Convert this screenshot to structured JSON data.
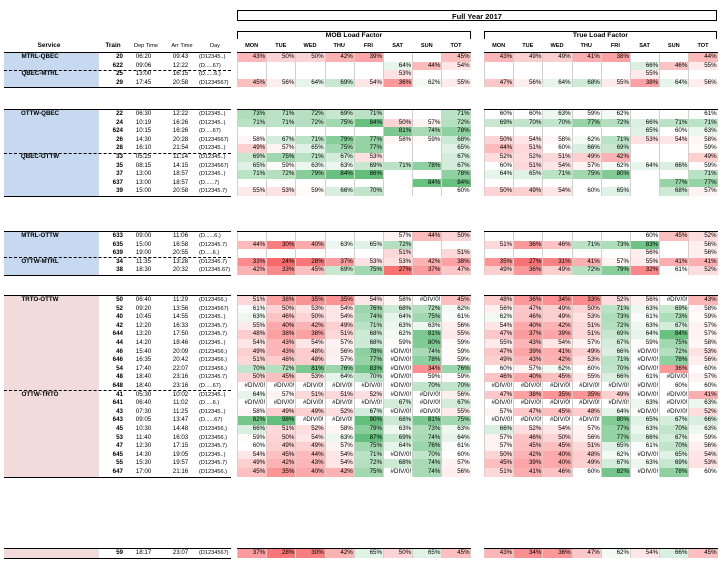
{
  "title": "Full Year 2017",
  "mob_header": "MOB Load Factor",
  "true_header": "True Load Factor",
  "columns": {
    "service": "Service",
    "train": "Train",
    "dep": "Dep Time",
    "arr": "Arr Time",
    "day": "Day",
    "days": [
      "MON",
      "TUE",
      "WED",
      "THU",
      "FRI",
      "SAT",
      "SUN",
      "TOT"
    ]
  },
  "rows": [
    {
      "svc": "MTRL-QBEC",
      "train": "20",
      "dep": "06:20",
      "arr": "09:43",
      "day": "(D12345..)",
      "mob": [
        "43%",
        "50%",
        "50%",
        "42%",
        "39%",
        "",
        "",
        "45%"
      ],
      "tru": [
        "43%",
        "49%",
        "49%",
        "41%",
        "38%",
        "",
        "",
        "44%"
      ]
    },
    {
      "svc": "",
      "train": "622",
      "dep": "09:06",
      "arr": "12:22",
      "day": "(D.....67)",
      "mob": [
        "",
        "",
        "",
        "",
        "",
        "64%",
        "44%",
        "54%"
      ],
      "tru": [
        "",
        "",
        "",
        "",
        "",
        "66%",
        "46%",
        "55%"
      ]
    },
    {
      "svc": "QBEC-MTRL",
      "train": "25",
      "dep": "13:00",
      "arr": "16:15",
      "day": "(D......6.)",
      "mob": [
        "",
        "",
        "",
        "",
        "",
        "53%",
        "",
        ""
      ],
      "tru": [
        "",
        "",
        "",
        "",
        "",
        "55%",
        "",
        ""
      ]
    },
    {
      "svc": "",
      "train": "29",
      "dep": "17:45",
      "arr": "20:58",
      "day": "(D1234567)",
      "mob": [
        "45%",
        "56%",
        "64%",
        "69%",
        "54%",
        "36%",
        "62%",
        "55%"
      ],
      "tru": [
        "47%",
        "56%",
        "64%",
        "68%",
        "55%",
        "38%",
        "64%",
        "56%"
      ]
    },
    {
      "svc": "OTTW-QBEC",
      "train": "22",
      "dep": "06:30",
      "arr": "12:22",
      "day": "(D12345..)",
      "mob": [
        "73%",
        "71%",
        "72%",
        "69%",
        "71%",
        "",
        "",
        "71%"
      ],
      "tru": [
        "60%",
        "60%",
        "63%",
        "59%",
        "62%",
        "",
        "",
        "61%"
      ]
    },
    {
      "svc": "",
      "train": "24",
      "dep": "10:19",
      "arr": "16:26",
      "day": "(D12345..)",
      "mob": [
        "71%",
        "71%",
        "72%",
        "75%",
        "84%",
        "50%",
        "57%",
        "72%"
      ],
      "tru": [
        "69%",
        "70%",
        "70%",
        "77%",
        "72%",
        "66%",
        "71%",
        "71%"
      ]
    },
    {
      "svc": "",
      "train": "624",
      "dep": "10:15",
      "arr": "16:26",
      "day": "(D.....67)",
      "mob": [
        "",
        "",
        "",
        "",
        "",
        "81%",
        "74%",
        "78%"
      ],
      "tru": [
        "",
        "",
        "",
        "",
        "",
        "65%",
        "60%",
        "63%"
      ]
    },
    {
      "svc": "",
      "train": "26",
      "dep": "14:30",
      "arr": "20:28",
      "day": "(D1234567)",
      "mob": [
        "58%",
        "67%",
        "71%",
        "79%",
        "77%",
        "58%",
        "59%",
        "68%"
      ],
      "tru": [
        "50%",
        "54%",
        "58%",
        "62%",
        "71%",
        "53%",
        "54%",
        "58%"
      ]
    },
    {
      "svc": "",
      "train": "28",
      "dep": "16:10",
      "arr": "21:54",
      "day": "(D12345..)",
      "mob": [
        "49%",
        "57%",
        "65%",
        "75%",
        "77%",
        "",
        "",
        "65%"
      ],
      "tru": [
        "44%",
        "51%",
        "60%",
        "66%",
        "69%",
        "",
        "",
        "59%"
      ]
    },
    {
      "svc": "QBEC-OTTW",
      "train": "33",
      "dep": "05:25",
      "arr": "11:14",
      "day": "(D12345..)",
      "mob": [
        "69%",
        "75%",
        "71%",
        "67%",
        "53%",
        "",
        "",
        "67%"
      ],
      "tru": [
        "52%",
        "52%",
        "51%",
        "49%",
        "42%",
        "",
        "",
        "49%"
      ]
    },
    {
      "svc": "",
      "train": "35",
      "dep": "08:15",
      "arr": "14:15",
      "day": "(D1234567)",
      "mob": [
        "65%",
        "59%",
        "63%",
        "63%",
        "69%",
        "71%",
        "78%",
        "67%"
      ],
      "tru": [
        "60%",
        "51%",
        "54%",
        "57%",
        "62%",
        "64%",
        "66%",
        "59%"
      ]
    },
    {
      "svc": "",
      "train": "37",
      "dep": "13:00",
      "arr": "18:57",
      "day": "(D12345..)",
      "mob": [
        "71%",
        "72%",
        "79%",
        "84%",
        "86%",
        "",
        "",
        "78%"
      ],
      "tru": [
        "64%",
        "65%",
        "71%",
        "75%",
        "80%",
        "",
        "",
        "71%"
      ]
    },
    {
      "svc": "",
      "train": "637",
      "dep": "13:00",
      "arr": "18:57",
      "day": "(D......7)",
      "mob": [
        "",
        "",
        "",
        "",
        "",
        "",
        "84%",
        "84%"
      ],
      "tru": [
        "",
        "",
        "",
        "",
        "",
        "",
        "77%",
        "77%"
      ]
    },
    {
      "svc": "",
      "train": "39",
      "dep": "15:00",
      "arr": "20:58",
      "day": "(D12345.7)",
      "mob": [
        "55%",
        "53%",
        "59%",
        "66%",
        "70%",
        "",
        "",
        "60%"
      ],
      "tru": [
        "50%",
        "49%",
        "54%",
        "60%",
        "65%",
        "",
        "68%",
        "57%"
      ]
    },
    {
      "svc": "MTRL-OTTW",
      "train": "633",
      "dep": "09:00",
      "arr": "11:06",
      "day": "(D......6.)",
      "mob": [
        "",
        "",
        "",
        "",
        "",
        "57%",
        "44%",
        "50%"
      ],
      "tru": [
        "",
        "",
        "",
        "",
        "",
        "60%",
        "45%",
        "52%"
      ]
    },
    {
      "svc": "",
      "train": "635",
      "dep": "15:00",
      "arr": "16:58",
      "day": "(D12345.7)",
      "mob": [
        "44%",
        "30%",
        "40%",
        "63%",
        "65%",
        "72%",
        "",
        ""
      ],
      "tru": [
        "51%",
        "36%",
        "46%",
        "71%",
        "73%",
        "83%",
        "",
        "56%"
      ]
    },
    {
      "svc": "",
      "train": "639",
      "dep": "19:00",
      "arr": "20:55",
      "day": "(D.....6.)",
      "mob": [
        "",
        "",
        "",
        "",
        "",
        "51%",
        "",
        "51%"
      ],
      "tru": [
        "",
        "",
        "",
        "",
        "",
        "56%",
        "",
        "56%"
      ]
    },
    {
      "svc": "OTTW-MTRL",
      "train": "34",
      "dep": "11:35",
      "arr": "13:28",
      "day": "(D12345.7)",
      "mob": [
        "33%",
        "24%",
        "28%",
        "37%",
        "53%",
        "53%",
        "42%",
        "38%"
      ],
      "tru": [
        "35%",
        "27%",
        "31%",
        "41%",
        "57%",
        "55%",
        "41%",
        "41%"
      ]
    },
    {
      "svc": "",
      "train": "38",
      "dep": "18:30",
      "arr": "20:32",
      "day": "(D12345.67)",
      "mob": [
        "42%",
        "33%",
        "45%",
        "69%",
        "75%",
        "27%",
        "37%",
        "47%"
      ],
      "tru": [
        "49%",
        "36%",
        "49%",
        "72%",
        "79%",
        "32%",
        "61%",
        "52%"
      ]
    },
    {
      "svc": "TRTO-OTTW",
      "train": "50",
      "dep": "06:40",
      "arr": "11:29",
      "day": "(D123456.)",
      "mob": [
        "51%",
        "38%",
        "35%",
        "35%",
        "54%",
        "58%",
        "#DIV/0!",
        "45%"
      ],
      "tru": [
        "48%",
        "36%",
        "34%",
        "33%",
        "52%",
        "56%",
        "#DIV/0!",
        "43%"
      ]
    },
    {
      "svc": "",
      "train": "52",
      "dep": "09:20",
      "arr": "13:56",
      "day": "(D1234567)",
      "mob": [
        "61%",
        "50%",
        "53%",
        "54%",
        "76%",
        "68%",
        "72%",
        "62%"
      ],
      "tru": [
        "56%",
        "47%",
        "49%",
        "50%",
        "71%",
        "63%",
        "69%",
        "58%"
      ]
    },
    {
      "svc": "",
      "train": "40",
      "dep": "10:45",
      "arr": "14:55",
      "day": "(D12345..)",
      "mob": [
        "63%",
        "46%",
        "50%",
        "54%",
        "74%",
        "64%",
        "75%",
        "61%"
      ],
      "tru": [
        "62%",
        "46%",
        "49%",
        "53%",
        "73%",
        "61%",
        "73%",
        "59%"
      ]
    },
    {
      "svc": "",
      "train": "42",
      "dep": "12:20",
      "arr": "16:33",
      "day": "(D12345.7)",
      "mob": [
        "55%",
        "40%",
        "42%",
        "49%",
        "71%",
        "63%",
        "63%",
        "56%"
      ],
      "tru": [
        "54%",
        "40%",
        "42%",
        "51%",
        "72%",
        "63%",
        "67%",
        "57%"
      ]
    },
    {
      "svc": "",
      "train": "644",
      "dep": "13:20",
      "arr": "17:50",
      "day": "(D12345.7)",
      "mob": [
        "48%",
        "38%",
        "38%",
        "51%",
        "68%",
        "62%",
        "81%",
        "55%"
      ],
      "tru": [
        "47%",
        "37%",
        "39%",
        "51%",
        "69%",
        "64%",
        "84%",
        "57%"
      ]
    },
    {
      "svc": "",
      "train": "44",
      "dep": "14:20",
      "arr": "18:46",
      "day": "(D12345..)",
      "mob": [
        "54%",
        "43%",
        "54%",
        "57%",
        "68%",
        "59%",
        "80%",
        "59%"
      ],
      "tru": [
        "55%",
        "43%",
        "54%",
        "57%",
        "67%",
        "59%",
        "75%",
        "58%"
      ]
    },
    {
      "svc": "",
      "train": "46",
      "dep": "15:40",
      "arr": "20:09",
      "day": "(D123456.)",
      "mob": [
        "49%",
        "43%",
        "48%",
        "56%",
        "78%",
        "#DIV/0!",
        "74%",
        "59%"
      ],
      "tru": [
        "47%",
        "39%",
        "41%",
        "49%",
        "66%",
        "#DIV/0!",
        "72%",
        "53%"
      ]
    },
    {
      "svc": "",
      "train": "646",
      "dep": "16:35",
      "arr": "20:42",
      "day": "(D123456.)",
      "mob": [
        "51%",
        "48%",
        "48%",
        "57%",
        "77%",
        "#DIV/0!",
        "78%",
        "59%"
      ],
      "tru": [
        "49%",
        "43%",
        "42%",
        "53%",
        "71%",
        "#DIV/0!",
        "78%",
        "56%"
      ]
    },
    {
      "svc": "",
      "train": "54",
      "dep": "17:40",
      "arr": "22:07",
      "day": "(D123456.)",
      "mob": [
        "70%",
        "72%",
        "81%",
        "76%",
        "83%",
        "#DIV/0!",
        "34%",
        "76%"
      ],
      "tru": [
        "60%",
        "57%",
        "62%",
        "60%",
        "70%",
        "#DIV/0!",
        "36%",
        "60%"
      ]
    },
    {
      "svc": "",
      "train": "48",
      "dep": "18:40",
      "arr": "23:16",
      "day": "(D12345.7)",
      "mob": [
        "50%",
        "45%",
        "53%",
        "64%",
        "70%",
        "#DIV/0!",
        "59%",
        "59%"
      ],
      "tru": [
        "46%",
        "40%",
        "45%",
        "55%",
        "66%",
        "61%",
        "#DIV/0!",
        "57%"
      ]
    },
    {
      "svc": "",
      "train": "648",
      "dep": "18:40",
      "arr": "23:16",
      "day": "(D.....67)",
      "mob": [
        "#DIV/0!",
        "#DIV/0!",
        "#DIV/0!",
        "#DIV/0!",
        "#DIV/0!",
        "#DIV/0!",
        "70%",
        "70%"
      ],
      "tru": [
        "#DIV/0!",
        "#DIV/0!",
        "#DIV/0!",
        "#DIV/0!",
        "#DIV/0!",
        "#DIV/0!",
        "60%",
        "60%"
      ]
    },
    {
      "svc": "OTTW-TRTO",
      "train": "41",
      "dep": "05:30",
      "arr": "10:02",
      "day": "(D12345..)",
      "mob": [
        "64%",
        "57%",
        "51%",
        "51%",
        "52%",
        "#DIV/0!",
        "#DIV/0!",
        "56%"
      ],
      "tru": [
        "47%",
        "38%",
        "35%",
        "35%",
        "49%",
        "#DIV/0!",
        "#DIV/0!",
        "41%"
      ]
    },
    {
      "svc": "",
      "train": "641",
      "dep": "06:40",
      "arr": "11:02",
      "day": "(D.....6.)",
      "mob": [
        "#DIV/0!",
        "#DIV/0!",
        "#DIV/0!",
        "#DIV/0!",
        "#DIV/0!",
        "67%",
        "#DIV/0!",
        "67%"
      ],
      "tru": [
        "#DIV/0!",
        "#DIV/0!",
        "#DIV/0!",
        "#DIV/0!",
        "#DIV/0!",
        "63%",
        "#DIV/0!",
        "63%"
      ]
    },
    {
      "svc": "",
      "train": "43",
      "dep": "07:30",
      "arr": "11:25",
      "day": "(D12345..)",
      "mob": [
        "58%",
        "49%",
        "49%",
        "52%",
        "67%",
        "#DIV/0!",
        "#DIV/0!",
        "55%"
      ],
      "tru": [
        "57%",
        "47%",
        "45%",
        "48%",
        "64%",
        "#DIV/0!",
        "#DIV/0!",
        "52%"
      ]
    },
    {
      "svc": "",
      "train": "643",
      "dep": "09:05",
      "arr": "13:47",
      "day": "(D......67)",
      "mob": [
        "82%",
        "98%",
        "#DIV/0!",
        "#DIV/0!",
        "90%",
        "68%",
        "81%",
        "75%"
      ],
      "tru": [
        "#DIV/0!",
        "#DIV/0!",
        "#DIV/0!",
        "#DIV/0!",
        "80%",
        "65%",
        "67%",
        "66%"
      ]
    },
    {
      "svc": "",
      "train": "45",
      "dep": "10:30",
      "arr": "14:48",
      "day": "(D123456.)",
      "mob": [
        "66%",
        "51%",
        "52%",
        "58%",
        "79%",
        "63%",
        "73%",
        "63%"
      ],
      "tru": [
        "66%",
        "52%",
        "54%",
        "57%",
        "77%",
        "63%",
        "70%",
        "63%"
      ]
    },
    {
      "svc": "",
      "train": "53",
      "dep": "11:40",
      "arr": "16:03",
      "day": "(D123456.)",
      "mob": [
        "59%",
        "50%",
        "54%",
        "63%",
        "87%",
        "69%",
        "74%",
        "64%"
      ],
      "tru": [
        "57%",
        "46%",
        "50%",
        "56%",
        "77%",
        "66%",
        "67%",
        "59%"
      ]
    },
    {
      "svc": "",
      "train": "47",
      "dep": "12:30",
      "arr": "17:15",
      "day": "(D12345.7)",
      "mob": [
        "60%",
        "49%",
        "49%",
        "57%",
        "75%",
        "64%",
        "76%",
        "61%"
      ],
      "tru": [
        "57%",
        "45%",
        "45%",
        "51%",
        "65%",
        "61%",
        "70%",
        "56%"
      ]
    },
    {
      "svc": "",
      "train": "645",
      "dep": "14:30",
      "arr": "19:05",
      "day": "(D12345..)",
      "mob": [
        "54%",
        "45%",
        "44%",
        "54%",
        "71%",
        "#DIV/0!",
        "70%",
        "60%"
      ],
      "tru": [
        "50%",
        "42%",
        "40%",
        "48%",
        "62%",
        "#DIV/0!",
        "65%",
        "54%"
      ]
    },
    {
      "svc": "",
      "train": "55",
      "dep": "15:30",
      "arr": "19:57",
      "day": "(D12345.7)",
      "mob": [
        "49%",
        "42%",
        "43%",
        "54%",
        "72%",
        "68%",
        "74%",
        "57%"
      ],
      "tru": [
        "45%",
        "39%",
        "40%",
        "49%",
        "67%",
        "63%",
        "69%",
        "53%"
      ]
    },
    {
      "svc": "",
      "train": "647",
      "dep": "17:00",
      "arr": "21:16",
      "day": "(D123456.)",
      "mob": [
        "45%",
        "35%",
        "40%",
        "42%",
        "75%",
        "#DIV/0!",
        "74%",
        "56%"
      ],
      "tru": [
        "51%",
        "41%",
        "46%",
        "60%",
        "82%",
        "#DIV/0!",
        "78%",
        "60%"
      ]
    },
    {
      "svc": "",
      "train": "59",
      "dep": "18:17",
      "arr": "23:07",
      "day": "(D1234567)",
      "mob": [
        "37%",
        "28%",
        "30%",
        "42%",
        "65%",
        "50%",
        "65%",
        "45%"
      ],
      "tru": [
        "43%",
        "34%",
        "36%",
        "47%",
        "62%",
        "54%",
        "66%",
        "45%"
      ]
    },
    {
      "svc": "DORV-TRTO",
      "train": "51",
      "dep": "06:00",
      "arr": "12:42",
      "day": "(D12345..)",
      "mob": [
        "66%",
        "61%",
        "56%",
        "60%",
        "76%",
        "#DIV/0!",
        "#DIV/0!",
        "64%"
      ],
      "tru": [
        "56%",
        "51%",
        "45%",
        "48%",
        "59%",
        "#DIV/0!",
        "#DIV/0!",
        "52%"
      ]
    }
  ],
  "colors": {
    "blue_band": "#c6d9f1",
    "pink_band": "#f2dcdb",
    "red": "#f8696b",
    "green": "#63be7b",
    "white": "#ffffff"
  }
}
